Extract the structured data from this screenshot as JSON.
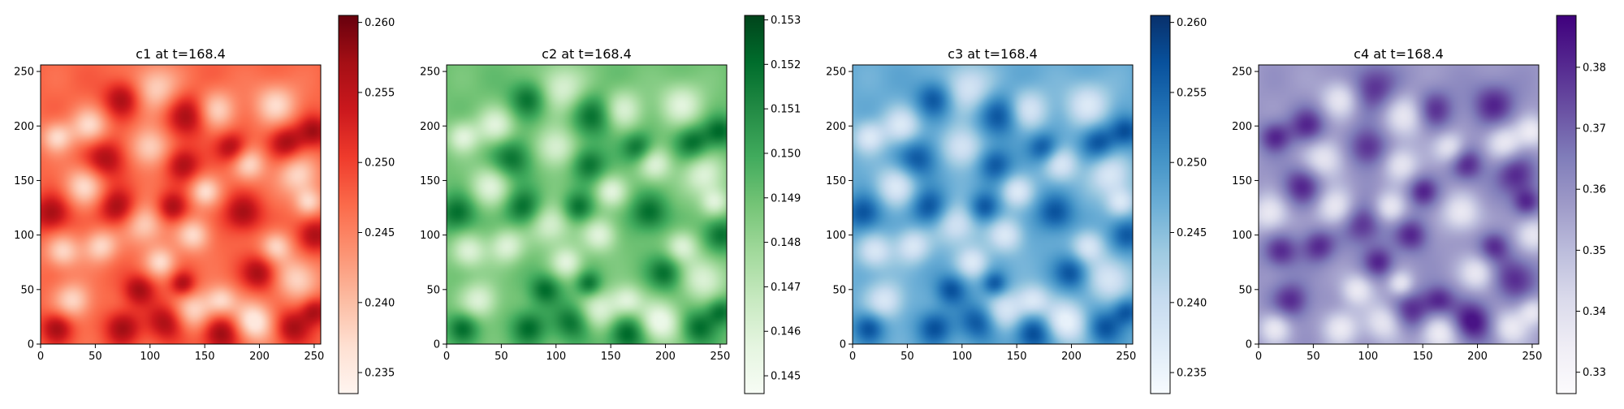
{
  "chart_data": [
    {
      "type": "heatmap",
      "title": "c1 at t=168.4",
      "colormap": "Reds",
      "colors": [
        "#fff5f0",
        "#fee0d2",
        "#fcbba1",
        "#fc9272",
        "#fb6a4a",
        "#ef3b2c",
        "#cb181d",
        "#a50f15",
        "#67000d"
      ],
      "xlim": [
        0,
        256
      ],
      "ylim": [
        0,
        256
      ],
      "xticks": [
        0,
        50,
        100,
        150,
        200,
        250
      ],
      "yticks": [
        0,
        50,
        100,
        150,
        200,
        250
      ],
      "vlim": [
        0.2335,
        0.2605
      ],
      "colorbar_ticks": [
        "0.235",
        "0.240",
        "0.245",
        "0.250",
        "0.255",
        "0.260"
      ],
      "colorbar_tick_values": [
        0.235,
        0.24,
        0.245,
        0.25,
        0.255,
        0.26
      ]
    },
    {
      "type": "heatmap",
      "title": "c2 at t=168.4",
      "colormap": "Greens",
      "colors": [
        "#f7fcf5",
        "#e5f5e0",
        "#c7e9c0",
        "#a1d99b",
        "#74c476",
        "#41ab5d",
        "#238b45",
        "#006d2c",
        "#00441b"
      ],
      "xlim": [
        0,
        256
      ],
      "ylim": [
        0,
        256
      ],
      "xticks": [
        0,
        50,
        100,
        150,
        200,
        250
      ],
      "yticks": [
        0,
        50,
        100,
        150,
        200,
        250
      ],
      "vlim": [
        0.1446,
        0.1531
      ],
      "colorbar_ticks": [
        "0.145",
        "0.146",
        "0.147",
        "0.148",
        "0.149",
        "0.150",
        "0.151",
        "0.152",
        "0.153"
      ],
      "colorbar_tick_values": [
        0.145,
        0.146,
        0.147,
        0.148,
        0.149,
        0.15,
        0.151,
        0.152,
        0.153
      ]
    },
    {
      "type": "heatmap",
      "title": "c3 at t=168.4",
      "colormap": "Blues",
      "colors": [
        "#f7fbff",
        "#deebf7",
        "#c6dbef",
        "#9ecae1",
        "#6baed6",
        "#4292c6",
        "#2171b5",
        "#08519c",
        "#08306b"
      ],
      "xlim": [
        0,
        256
      ],
      "ylim": [
        0,
        256
      ],
      "xticks": [
        0,
        50,
        100,
        150,
        200,
        250
      ],
      "yticks": [
        0,
        50,
        100,
        150,
        200,
        250
      ],
      "vlim": [
        0.2335,
        0.2605
      ],
      "colorbar_ticks": [
        "0.235",
        "0.240",
        "0.245",
        "0.250",
        "0.255",
        "0.260"
      ],
      "colorbar_tick_values": [
        0.235,
        0.24,
        0.245,
        0.25,
        0.255,
        0.26
      ]
    },
    {
      "type": "heatmap",
      "title": "c4 at t=168.4",
      "colormap": "Purples",
      "colors": [
        "#fcfbfd",
        "#efedf5",
        "#dadaeb",
        "#bcbddc",
        "#9e9ac8",
        "#807dba",
        "#6a51a3",
        "#54278f",
        "#3f007d"
      ],
      "xlim": [
        0,
        256
      ],
      "ylim": [
        0,
        256
      ],
      "xticks": [
        0,
        50,
        100,
        150,
        200,
        250
      ],
      "yticks": [
        0,
        50,
        100,
        150,
        200,
        250
      ],
      "vlim": [
        0.3265,
        0.3885
      ],
      "colorbar_ticks": [
        "0.33",
        "0.34",
        "0.35",
        "0.36",
        "0.37",
        "0.38"
      ],
      "colorbar_tick_values": [
        0.33,
        0.34,
        0.35,
        0.36,
        0.37,
        0.38
      ]
    }
  ]
}
